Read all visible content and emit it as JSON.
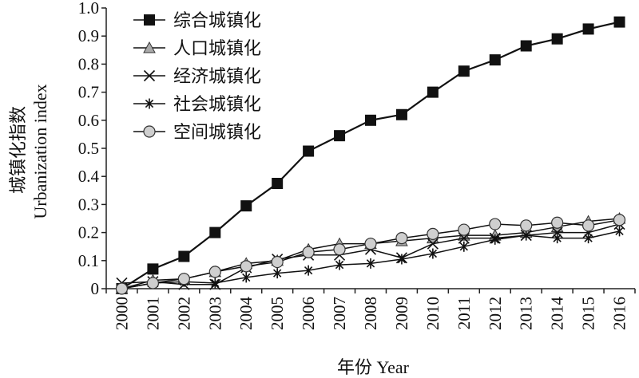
{
  "chart_data": {
    "type": "line",
    "title": "",
    "xlabel": "年份 Year",
    "ylabel_cn": "城镇化指数",
    "ylabel_en": "Urbanization index",
    "ylim": [
      0,
      1.0
    ],
    "ytick_labels": [
      "0",
      "0.1",
      "0.2",
      "0.3",
      "0.4",
      "0.5",
      "0.6",
      "0.7",
      "0.8",
      "0.9",
      "1.0"
    ],
    "x": [
      "2000",
      "2001",
      "2002",
      "2003",
      "2004",
      "2005",
      "2006",
      "2007",
      "2008",
      "2009",
      "2010",
      "2011",
      "2012",
      "2013",
      "2014",
      "2015",
      "2016"
    ],
    "grid": false,
    "legend_position": "top-left",
    "series": [
      {
        "name": "综合城镇化",
        "marker": "square",
        "values": [
          0.0,
          0.07,
          0.115,
          0.2,
          0.295,
          0.375,
          0.49,
          0.545,
          0.6,
          0.62,
          0.7,
          0.775,
          0.815,
          0.865,
          0.89,
          0.925,
          0.95
        ]
      },
      {
        "name": "人口城镇化",
        "marker": "triangle",
        "values": [
          0.0,
          0.03,
          0.035,
          0.06,
          0.09,
          0.1,
          0.14,
          0.16,
          0.16,
          0.17,
          0.18,
          0.19,
          0.19,
          0.2,
          0.22,
          0.24,
          0.25
        ]
      },
      {
        "name": "经济城镇化",
        "marker": "x",
        "values": [
          0.02,
          0.025,
          0.015,
          0.015,
          0.075,
          0.105,
          0.12,
          0.12,
          0.14,
          0.11,
          0.16,
          0.18,
          0.18,
          0.19,
          0.2,
          0.2,
          0.23
        ]
      },
      {
        "name": "社会城镇化",
        "marker": "asterisk",
        "values": [
          0.0,
          0.02,
          0.025,
          0.02,
          0.04,
          0.055,
          0.065,
          0.085,
          0.09,
          0.105,
          0.125,
          0.15,
          0.175,
          0.19,
          0.18,
          0.18,
          0.205
        ]
      },
      {
        "name": "空间城镇化",
        "marker": "circle",
        "values": [
          0.0,
          0.02,
          0.035,
          0.06,
          0.08,
          0.095,
          0.13,
          0.14,
          0.16,
          0.18,
          0.195,
          0.21,
          0.23,
          0.225,
          0.235,
          0.225,
          0.245
        ]
      }
    ]
  }
}
